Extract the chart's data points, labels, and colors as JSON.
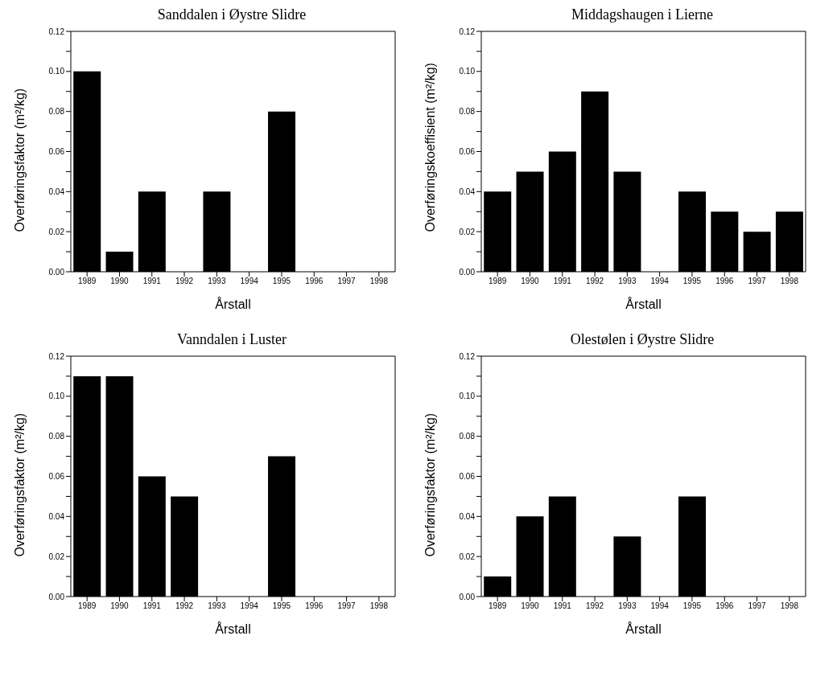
{
  "chart_data": [
    {
      "type": "bar",
      "title": "Sanddalen i Øystre Slidre",
      "xlabel": "Årstall",
      "ylabel": "Overføringsfaktor (m²/kg)",
      "categories": [
        "1989",
        "1990",
        "1991",
        "1992",
        "1993",
        "1994",
        "1995",
        "1996",
        "1997",
        "1998"
      ],
      "values": [
        0.1,
        0.01,
        0.04,
        0,
        0.04,
        0,
        0.08,
        0,
        0,
        0
      ],
      "color": "#000000",
      "ylim": [
        0,
        0.12
      ],
      "yticks": [
        {
          "value": 0,
          "label": "0.00"
        },
        {
          "value": 0.01,
          "label": null
        },
        {
          "value": 0.02,
          "label": "0.02"
        },
        {
          "value": 0.03,
          "label": null
        },
        {
          "value": 0.04,
          "label": "0.04"
        },
        {
          "value": 0.05,
          "label": null
        },
        {
          "value": 0.06,
          "label": "0.06"
        },
        {
          "value": 0.07,
          "label": null
        },
        {
          "value": 0.08,
          "label": "0.08"
        },
        {
          "value": 0.09,
          "label": null
        },
        {
          "value": 0.1,
          "label": "0.10"
        },
        {
          "value": 0.11,
          "label": null
        },
        {
          "value": 0.12,
          "label": "0.12"
        }
      ]
    },
    {
      "type": "bar",
      "title": "Middagshaugen i Lierne",
      "xlabel": "Årstall",
      "ylabel": "Overføringskoeffisient (m²/kg)",
      "categories": [
        "1989",
        "1990",
        "1991",
        "1992",
        "1993",
        "1994",
        "1995",
        "1996",
        "1997",
        "1998"
      ],
      "values": [
        0.04,
        0.05,
        0.06,
        0.09,
        0.05,
        0,
        0.04,
        0.03,
        0.02,
        0.03
      ],
      "color": "#000000",
      "ylim": [
        0,
        0.12
      ],
      "yticks": [
        {
          "value": 0,
          "label": "0.00"
        },
        {
          "value": 0.01,
          "label": null
        },
        {
          "value": 0.02,
          "label": "0.02"
        },
        {
          "value": 0.03,
          "label": null
        },
        {
          "value": 0.04,
          "label": "0.04"
        },
        {
          "value": 0.05,
          "label": null
        },
        {
          "value": 0.06,
          "label": "0.06"
        },
        {
          "value": 0.07,
          "label": null
        },
        {
          "value": 0.08,
          "label": "0.08"
        },
        {
          "value": 0.09,
          "label": null
        },
        {
          "value": 0.1,
          "label": "0.10"
        },
        {
          "value": 0.11,
          "label": null
        },
        {
          "value": 0.12,
          "label": "0.12"
        }
      ]
    },
    {
      "type": "bar",
      "title": "Vanndalen i Luster",
      "xlabel": "Årstall",
      "ylabel": "Overføringsfaktor (m²/kg)",
      "categories": [
        "1989",
        "1990",
        "1991",
        "1992",
        "1993",
        "1994",
        "1995",
        "1996",
        "1997",
        "1998"
      ],
      "values": [
        0.11,
        0.11,
        0.06,
        0.05,
        0,
        0,
        0.07,
        0,
        0,
        0
      ],
      "color": "#000000",
      "ylim": [
        0,
        0.12
      ],
      "yticks": [
        {
          "value": 0,
          "label": "0.00"
        },
        {
          "value": 0.01,
          "label": null
        },
        {
          "value": 0.02,
          "label": "0.02"
        },
        {
          "value": 0.03,
          "label": null
        },
        {
          "value": 0.04,
          "label": "0.04"
        },
        {
          "value": 0.05,
          "label": null
        },
        {
          "value": 0.06,
          "label": "0.06"
        },
        {
          "value": 0.07,
          "label": null
        },
        {
          "value": 0.08,
          "label": "0.08"
        },
        {
          "value": 0.09,
          "label": null
        },
        {
          "value": 0.1,
          "label": "0.10"
        },
        {
          "value": 0.11,
          "label": null
        },
        {
          "value": 0.12,
          "label": "0.12"
        }
      ]
    },
    {
      "type": "bar",
      "title": "Olestølen i Øystre Slidre",
      "xlabel": "Årstall",
      "ylabel": "Overføringsfaktor (m²/kg)",
      "categories": [
        "1989",
        "1990",
        "1991",
        "1992",
        "1993",
        "1994",
        "1995",
        "1996",
        "1997",
        "1998"
      ],
      "values": [
        0.01,
        0.04,
        0.05,
        0,
        0.03,
        0,
        0.05,
        0,
        0,
        0
      ],
      "color": "#000000",
      "ylim": [
        0,
        0.12
      ],
      "yticks": [
        {
          "value": 0,
          "label": "0.00"
        },
        {
          "value": 0.01,
          "label": null
        },
        {
          "value": 0.02,
          "label": "0.02"
        },
        {
          "value": 0.03,
          "label": null
        },
        {
          "value": 0.04,
          "label": "0.04"
        },
        {
          "value": 0.05,
          "label": null
        },
        {
          "value": 0.06,
          "label": "0.06"
        },
        {
          "value": 0.07,
          "label": null
        },
        {
          "value": 0.08,
          "label": "0.08"
        },
        {
          "value": 0.09,
          "label": null
        },
        {
          "value": 0.1,
          "label": "0.10"
        },
        {
          "value": 0.11,
          "label": null
        },
        {
          "value": 0.12,
          "label": "0.12"
        }
      ]
    }
  ]
}
